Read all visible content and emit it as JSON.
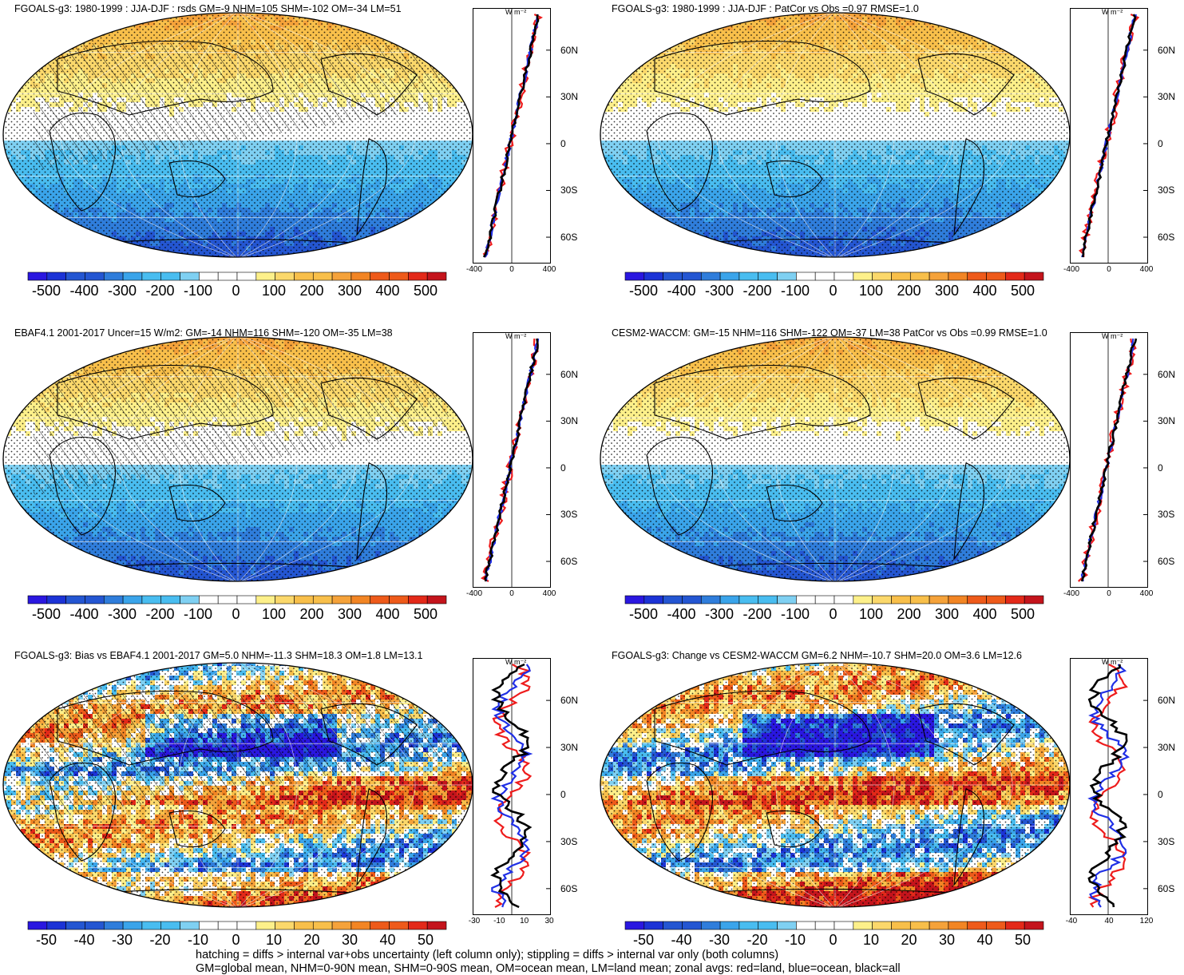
{
  "panels": [
    {
      "title": "FGOALS-g3: 1980-1999 : JJA-DJF : rsds GM=-9 NHM=105 SHM=-102 OM=-34 LM=51",
      "kind": "mean",
      "colorbar_labels": [
        "-500",
        "-400",
        "-300",
        "-200",
        "-100",
        "0",
        "100",
        "200",
        "300",
        "400",
        "500"
      ],
      "zonal_xticks": [
        "-400",
        "0",
        "400"
      ],
      "zonal_unit": "W m⁻²",
      "hatched": true
    },
    {
      "title": "FGOALS-g3: 1980-1999 : JJA-DJF : PatCor vs Obs =0.97 RMSE=1.0",
      "kind": "mean",
      "colorbar_labels": [
        "-500",
        "-400",
        "-300",
        "-200",
        "-100",
        "0",
        "100",
        "200",
        "300",
        "400",
        "500"
      ],
      "zonal_xticks": [
        "-400",
        "0",
        "400"
      ],
      "zonal_unit": "W m⁻²",
      "hatched": false
    },
    {
      "title": "EBAF4.1 2001-2017 Uncer=15 W/m2: GM=-14 NHM=116 SHM=-120 OM=-35 LM=38",
      "kind": "mean",
      "colorbar_labels": [
        "-500",
        "-400",
        "-300",
        "-200",
        "-100",
        "0",
        "100",
        "200",
        "300",
        "400",
        "500"
      ],
      "zonal_xticks": [
        "-400",
        "0",
        "400"
      ],
      "zonal_unit": "W m⁻²",
      "hatched": true
    },
    {
      "title": "CESM2-WACCM: GM=-15 NHM=116 SHM=-122 OM=-37 LM=38 PatCor vs Obs =0.99 RMSE=1.0",
      "kind": "mean",
      "colorbar_labels": [
        "-500",
        "-400",
        "-300",
        "-200",
        "-100",
        "0",
        "100",
        "200",
        "300",
        "400",
        "500"
      ],
      "zonal_xticks": [
        "-400",
        "0",
        "400"
      ],
      "zonal_unit": "W m⁻²",
      "hatched": false
    },
    {
      "title": "FGOALS-g3: Bias vs EBAF4.1 2001-2017 GM=5.0 NHM=-11.3 SHM=18.3 OM=1.8 LM=13.1",
      "kind": "diff",
      "colorbar_labels": [
        "-50",
        "-40",
        "-30",
        "-20",
        "-10",
        "0",
        "10",
        "20",
        "30",
        "40",
        "50"
      ],
      "zonal_xticks": [
        "-30",
        "-10",
        "10",
        "30"
      ],
      "zonal_unit": "W m⁻²",
      "hatched": true
    },
    {
      "title": "FGOALS-g3: Change vs CESM2-WACCM GM=6.2 NHM=-10.7 SHM=20.0 OM=3.6 LM=12.6",
      "kind": "diff",
      "colorbar_labels": [
        "-50",
        "-40",
        "-30",
        "-20",
        "-10",
        "0",
        "10",
        "20",
        "30",
        "40",
        "50"
      ],
      "zonal_xticks": [
        "-40",
        "40",
        "120"
      ],
      "zonal_unit": "W m⁻²",
      "hatched": false
    }
  ],
  "lat_labels": [
    "60N",
    "30N",
    "0",
    "30S",
    "60S"
  ],
  "colors": {
    "ramp": [
      "#2a17e0",
      "#1c33d6",
      "#2456d2",
      "#2f7ddb",
      "#3aa4ea",
      "#49bdf0",
      "#7fd0f2",
      "#ffffff",
      "#ffffff",
      "#fdf08a",
      "#fbd86b",
      "#f8bf4a",
      "#f5a23a",
      "#f28524",
      "#ee5a1a",
      "#e32919",
      "#c4141c"
    ],
    "land_zonal": "#ee1c1c",
    "ocean_zonal": "#1f2fe6",
    "all_zonal": "#000000"
  },
  "footer": {
    "line1": "hatching = diffs > internal var+obs uncertainty (left column only); stippling = diffs > internal var only (both columns)",
    "line2": "GM=global mean, NHM=0-90N mean, SHM=0-90S mean, OM=ocean mean, LM=land mean; zonal avgs: red=land, blue=ocean, black=all"
  }
}
